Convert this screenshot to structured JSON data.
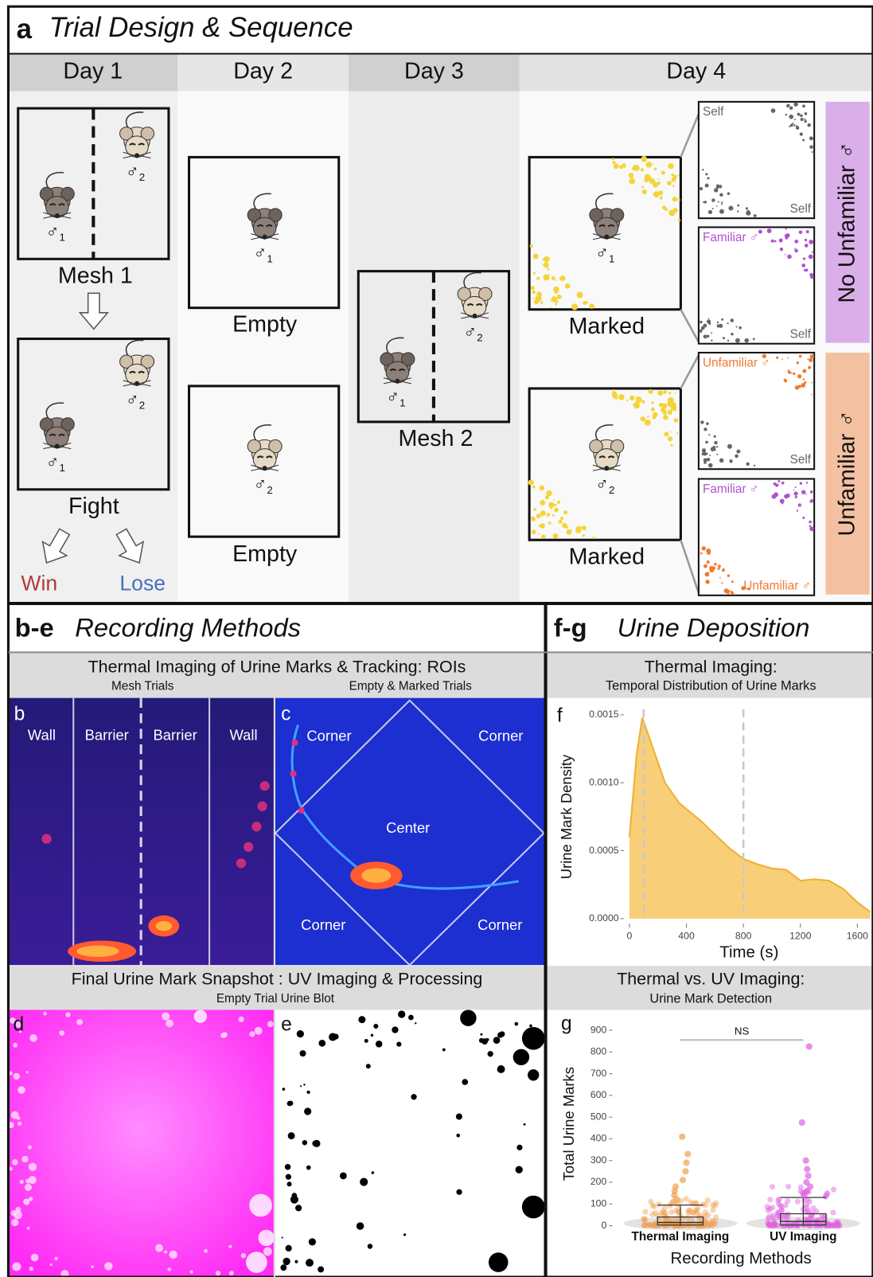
{
  "panel_a": {
    "label": "a",
    "title": "Trial Design & Sequence",
    "days": [
      "Day 1",
      "Day 2",
      "Day 3",
      "Day 4"
    ],
    "box_labels": [
      "Mesh 1",
      "Fight",
      "Empty",
      "Empty",
      "Mesh 2",
      "Marked",
      "Marked"
    ],
    "outcomes": [
      "Win",
      "Lose"
    ],
    "mice": [
      {
        "symbol": "♂",
        "id": "1"
      },
      {
        "symbol": "♂",
        "id": "2"
      },
      {
        "symbol": "♂",
        "id": "1"
      },
      {
        "symbol": "♂",
        "id": "2"
      },
      {
        "symbol": "♂",
        "id": "1"
      },
      {
        "symbol": "♂",
        "id": "2"
      },
      {
        "symbol": "♂",
        "id": "1"
      },
      {
        "symbol": "♂",
        "id": "2"
      },
      {
        "symbol": "♂",
        "id": "1"
      },
      {
        "symbol": "♂",
        "id": "2"
      }
    ],
    "scent_boxes": [
      {
        "top": "Self",
        "bottom": "Self"
      },
      {
        "top": "Familiar ♂",
        "bottom": "Self"
      },
      {
        "top": "Unfamiliar ♂",
        "bottom": "Self"
      },
      {
        "top": "Familiar ♂",
        "bottom": "Unfamiliar ♂"
      }
    ],
    "conditions": [
      "No Unfamiliar ♂",
      "Unfamiliar ♂"
    ]
  },
  "panel_be": {
    "label": "b-e",
    "title": "Recording Methods",
    "thermal_header": {
      "title": "Thermal Imaging of Urine Marks & Tracking: ROIs",
      "left": "Mesh Trials",
      "right": "Empty & Marked Trials"
    },
    "b": {
      "label": "b",
      "regions": [
        "Wall",
        "Barrier",
        "Barrier",
        "Wall"
      ]
    },
    "c": {
      "label": "c",
      "regions": [
        "Corner",
        "Corner",
        "Center",
        "Corner",
        "Corner"
      ]
    },
    "uv_header": {
      "title": "Final Urine Mark Snapshot : UV Imaging & Processing",
      "subtitle": "Empty Trial Urine Blot"
    },
    "d": {
      "label": "d"
    },
    "e": {
      "label": "e"
    }
  },
  "panel_fg": {
    "label": "f-g",
    "title": "Urine Deposition",
    "f_header": {
      "title": "Thermal Imaging:",
      "subtitle": "Temporal Distribution of Urine Marks"
    },
    "g_header": {
      "title": "Thermal vs. UV Imaging:",
      "subtitle": "Urine Mark Detection"
    }
  },
  "chart_data": [
    {
      "type": "area",
      "panel": "f",
      "x_label": "Time (s)",
      "y_label": "Urine Mark Density",
      "x": [
        0,
        50,
        90,
        150,
        250,
        350,
        500,
        600,
        700,
        800,
        900,
        1000,
        1100,
        1200,
        1300,
        1400,
        1500,
        1600,
        1690
      ],
      "values": [
        0.0006,
        0.0012,
        0.00148,
        0.0013,
        0.001,
        0.00085,
        0.00072,
        0.00062,
        0.00052,
        0.00044,
        0.0004,
        0.00037,
        0.00036,
        0.00028,
        0.00029,
        0.00028,
        0.00022,
        0.00012,
        5e-05
      ],
      "color": "#f8cf78",
      "line_color": "#f0b030",
      "xlim": [
        0,
        1700
      ],
      "xticks": [
        0,
        400,
        800,
        1200,
        1600
      ],
      "ylim": [
        0,
        0.0016
      ],
      "yticks": [
        {
          "value": 0,
          "label": "0.0000"
        },
        {
          "value": 0.0005,
          "label": "0.0005"
        },
        {
          "value": 0.001,
          "label": "0.0010"
        },
        {
          "value": 0.0015,
          "label": "0.0015"
        }
      ],
      "vlines": [
        100,
        800
      ]
    },
    {
      "type": "box",
      "panel": "g",
      "annotation": "NS",
      "x_label": "Recording Methods",
      "y_label": "Total Urine Marks",
      "categories": [
        "Thermal Imaging",
        "UV Imaging"
      ],
      "boxes": [
        {
          "color": "#f0a050",
          "min": 0,
          "q1": 3,
          "median": 15,
          "q3": 40,
          "max": 95,
          "outliers": [
            410,
            330,
            290,
            250,
            210,
            180,
            160,
            140,
            120,
            110
          ]
        },
        {
          "color": "#e060e0",
          "min": 0,
          "q1": 3,
          "median": 20,
          "q3": 55,
          "max": 130,
          "outliers": [
            825,
            475,
            300,
            260,
            230,
            200,
            180,
            160,
            150,
            140
          ]
        }
      ],
      "ylim": [
        0,
        900
      ],
      "yticks": [
        0,
        100,
        200,
        300,
        400,
        500,
        600,
        700,
        800,
        900
      ]
    }
  ]
}
